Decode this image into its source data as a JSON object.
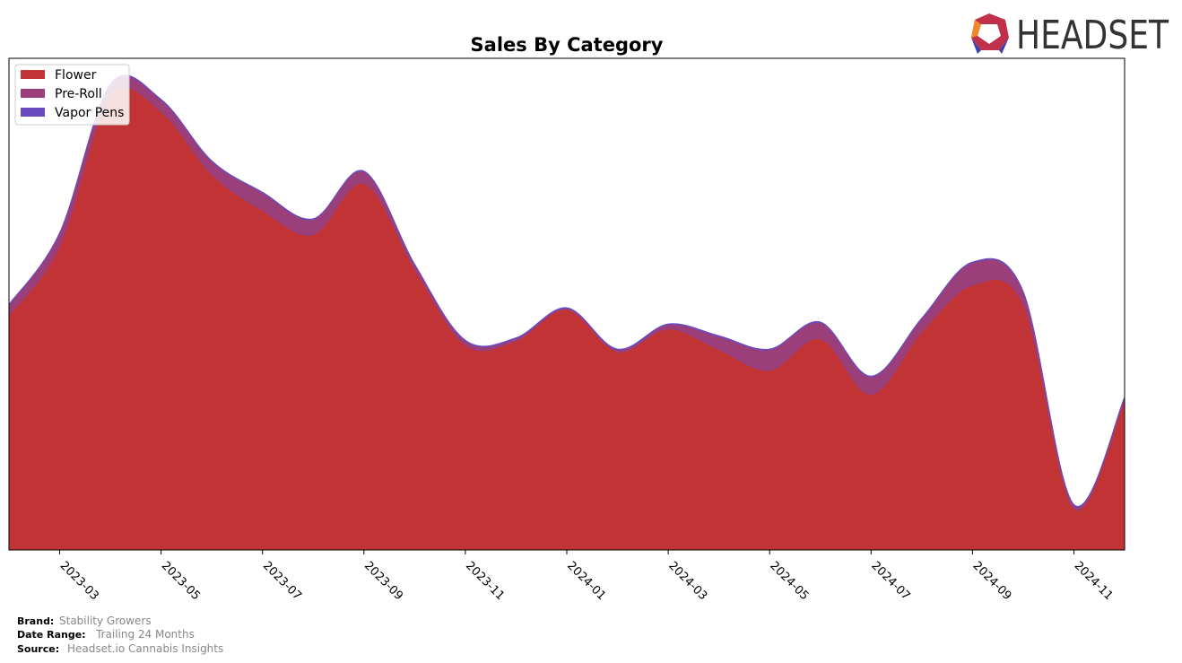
{
  "chart_data": {
    "type": "stacked-area",
    "title": "Sales By Category",
    "x": [
      "2023-02",
      "2023-03",
      "2023-04",
      "2023-05",
      "2023-06",
      "2023-07",
      "2023-08",
      "2023-09",
      "2023-10",
      "2023-11",
      "2023-12",
      "2024-01",
      "2024-02",
      "2024-03",
      "2024-04",
      "2024-05",
      "2024-06",
      "2024-07",
      "2024-08",
      "2024-09",
      "2024-10",
      "2024-11",
      "2024-12"
    ],
    "xlim": [
      "2023-02",
      "2024-12"
    ],
    "xticks": [
      "2023-03",
      "2023-05",
      "2023-07",
      "2023-09",
      "2023-11",
      "2024-01",
      "2024-03",
      "2024-05",
      "2024-07",
      "2024-09",
      "2024-11"
    ],
    "ylim": [
      0,
      100
    ],
    "legend_position": "upper left",
    "series": [
      {
        "name": "Flower",
        "color": "#c13334",
        "values": [
          47.6,
          61.7,
          92.2,
          89.1,
          76.3,
          69.0,
          64.1,
          74.5,
          57.1,
          41.6,
          42.5,
          48.9,
          40.3,
          44.9,
          40.7,
          36.5,
          42.9,
          31.6,
          44.3,
          53.8,
          49.8,
          8.4,
          30.3
        ]
      },
      {
        "name": "Pre-Roll",
        "color": "#9b3f7a",
        "values": [
          2.2,
          2.7,
          2.4,
          2.4,
          2.7,
          3.6,
          3.1,
          2.4,
          0.9,
          0.9,
          0.5,
          0.2,
          0.4,
          0.9,
          2.7,
          4.2,
          3.3,
          3.6,
          2.7,
          4.6,
          2.7,
          0.7,
          0.7
        ]
      },
      {
        "name": "Vapor Pens",
        "color": "#6a4bbf",
        "values": [
          0.2,
          0.2,
          0.2,
          0.2,
          0.2,
          0.2,
          0.2,
          0.2,
          0.2,
          0.2,
          0.2,
          0.2,
          0.2,
          0.2,
          0.2,
          0.2,
          0.2,
          0.2,
          0.2,
          0.2,
          0.2,
          0.2,
          0.2
        ]
      }
    ]
  },
  "logo": "HEADSET",
  "footer": {
    "brand_label": "Brand:",
    "brand": "Stability Growers",
    "range_label": "Date Range:",
    "range": "Trailing 24 Months",
    "source_label": "Source:",
    "source": "Headset.io Cannabis Insights"
  }
}
